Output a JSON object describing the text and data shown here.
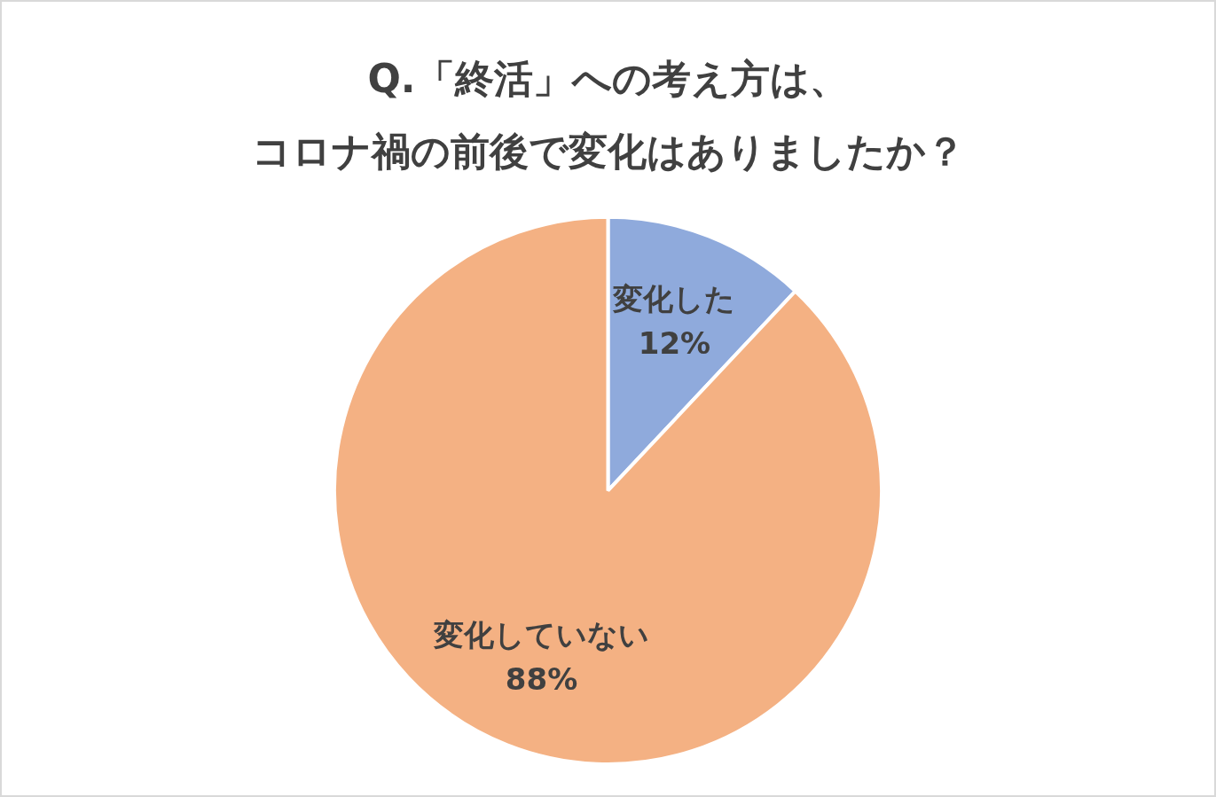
{
  "chart_data": {
    "type": "pie",
    "title": "Q.「終活」への考え方は、コロナ禍の前後で変化はありましたか？",
    "categories": [
      "変化した",
      "変化していない"
    ],
    "values": [
      12,
      88
    ],
    "colors": [
      "#8faadc",
      "#f4b183"
    ],
    "value_labels": [
      "12%",
      "88%"
    ],
    "legend": false
  }
}
